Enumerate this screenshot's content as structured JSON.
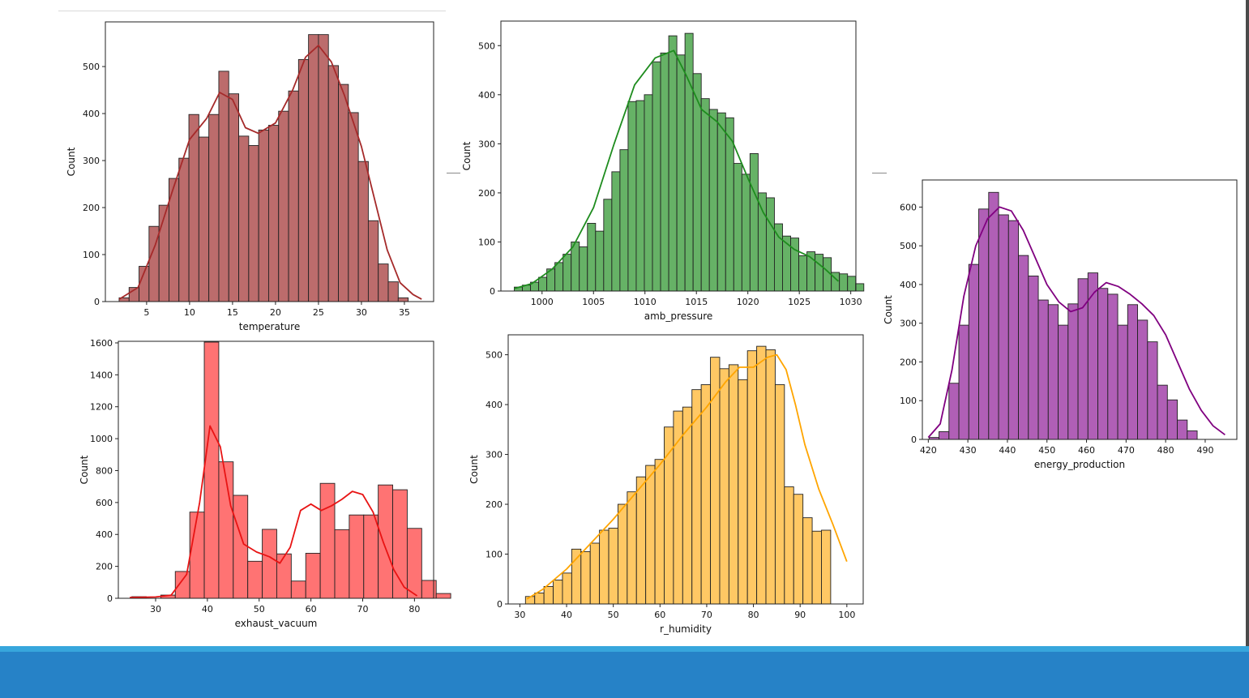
{
  "chart_data": [
    {
      "type": "bar",
      "xlabel": "temperature",
      "ylabel": "Count",
      "color": "#bc6c6c",
      "kde_color": "#a52a2a",
      "xlim": [
        0.2,
        38.4
      ],
      "ylim": [
        0,
        595
      ],
      "xticks": [
        5,
        10,
        15,
        20,
        25,
        30,
        35
      ],
      "yticks": [
        0,
        100,
        200,
        300,
        400,
        500
      ],
      "bin_start": 1.8,
      "bin_width": 1.16,
      "values": [
        8,
        30,
        75,
        160,
        205,
        262,
        305,
        398,
        350,
        398,
        490,
        442,
        352,
        332,
        365,
        375,
        405,
        448,
        515,
        568,
        568,
        502,
        462,
        402,
        298,
        172,
        80,
        42,
        8,
        0
      ],
      "kde": [
        [
          1.8,
          5
        ],
        [
          4,
          30
        ],
        [
          6,
          120
        ],
        [
          8,
          235
        ],
        [
          10,
          345
        ],
        [
          12,
          390
        ],
        [
          13.5,
          445
        ],
        [
          15,
          430
        ],
        [
          16.5,
          370
        ],
        [
          18,
          358
        ],
        [
          20,
          380
        ],
        [
          22,
          450
        ],
        [
          23.5,
          520
        ],
        [
          25,
          545
        ],
        [
          26.5,
          510
        ],
        [
          28,
          440
        ],
        [
          30,
          330
        ],
        [
          31.5,
          220
        ],
        [
          33,
          110
        ],
        [
          34.5,
          40
        ],
        [
          36,
          15
        ],
        [
          37,
          5
        ]
      ]
    },
    {
      "type": "bar",
      "xlabel": "amb_pressure",
      "ylabel": "Count",
      "color": "#66b266",
      "kde_color": "#1e8c1e",
      "xlim": [
        996,
        1030.5
      ],
      "ylim": [
        0,
        550
      ],
      "xticks": [
        1000,
        1005,
        1010,
        1015,
        1020,
        1025,
        1030
      ],
      "yticks": [
        0,
        100,
        200,
        300,
        400,
        500
      ],
      "bin_start": 997.3,
      "bin_width": 0.79,
      "values": [
        8,
        12,
        18,
        28,
        45,
        58,
        75,
        100,
        90,
        138,
        122,
        187,
        243,
        288,
        386,
        388,
        400,
        467,
        485,
        520,
        481,
        525,
        443,
        392,
        370,
        363,
        353,
        260,
        238,
        280,
        200,
        190,
        137,
        112,
        108,
        72,
        80,
        75,
        68,
        38,
        35,
        30,
        15
      ],
      "kde": [
        [
          997.3,
          5
        ],
        [
          999,
          15
        ],
        [
          1001,
          45
        ],
        [
          1003,
          90
        ],
        [
          1005,
          170
        ],
        [
          1007,
          300
        ],
        [
          1009,
          420
        ],
        [
          1011,
          475
        ],
        [
          1012.8,
          490
        ],
        [
          1014,
          440
        ],
        [
          1015.5,
          370
        ],
        [
          1017,
          345
        ],
        [
          1018.5,
          305
        ],
        [
          1020,
          230
        ],
        [
          1021.5,
          160
        ],
        [
          1023,
          110
        ],
        [
          1024.5,
          85
        ],
        [
          1026,
          70
        ],
        [
          1027.5,
          45
        ],
        [
          1028.8,
          20
        ]
      ]
    },
    {
      "type": "bar",
      "xlabel": "energy_production",
      "ylabel": "Count",
      "color": "#b05fb6",
      "kde_color": "#800080",
      "xlim": [
        418.5,
        498
      ],
      "ylim": [
        0,
        670
      ],
      "xticks": [
        420,
        430,
        440,
        450,
        460,
        470,
        480,
        490
      ],
      "yticks": [
        0,
        100,
        200,
        300,
        400,
        500,
        600
      ],
      "bin_start": 420.2,
      "bin_width": 2.51,
      "values": [
        5,
        20,
        145,
        295,
        452,
        595,
        638,
        580,
        565,
        475,
        422,
        360,
        348,
        295,
        350,
        415,
        430,
        390,
        375,
        295,
        348,
        308,
        252,
        140,
        102,
        50,
        22,
        0,
        0,
        0
      ],
      "kde": [
        [
          420,
          5
        ],
        [
          423,
          40
        ],
        [
          426,
          180
        ],
        [
          429,
          370
        ],
        [
          432,
          500
        ],
        [
          435,
          570
        ],
        [
          438,
          600
        ],
        [
          441,
          590
        ],
        [
          444,
          540
        ],
        [
          447,
          470
        ],
        [
          450,
          400
        ],
        [
          453,
          355
        ],
        [
          456,
          330
        ],
        [
          459,
          340
        ],
        [
          462,
          380
        ],
        [
          465,
          405
        ],
        [
          468,
          395
        ],
        [
          471,
          375
        ],
        [
          474,
          350
        ],
        [
          477,
          320
        ],
        [
          480,
          270
        ],
        [
          483,
          200
        ],
        [
          486,
          130
        ],
        [
          489,
          75
        ],
        [
          492,
          35
        ],
        [
          495,
          12
        ]
      ]
    },
    {
      "type": "bar",
      "xlabel": "exhaust_vacuum",
      "ylabel": "Count",
      "color": "#ff7373",
      "kde_color": "#e81414",
      "xlim": [
        22.8,
        83.7
      ],
      "ylim": [
        0,
        1610
      ],
      "xticks": [
        30,
        40,
        50,
        60,
        70,
        80
      ],
      "yticks": [
        0,
        200,
        400,
        600,
        800,
        1000,
        1200,
        1400,
        1600
      ],
      "bin_start": 25.4,
      "bin_width": 2.8,
      "values": [
        10,
        0,
        20,
        168,
        540,
        1605,
        855,
        645,
        232,
        432,
        278,
        108,
        282,
        720,
        430,
        522,
        522,
        710,
        680,
        438,
        112,
        30
      ],
      "kde": [
        [
          25,
          5
        ],
        [
          30,
          8
        ],
        [
          33,
          20
        ],
        [
          36,
          150
        ],
        [
          38.5,
          600
        ],
        [
          40.5,
          1080
        ],
        [
          42.5,
          950
        ],
        [
          44.5,
          580
        ],
        [
          47,
          340
        ],
        [
          49.5,
          290
        ],
        [
          52,
          260
        ],
        [
          54,
          220
        ],
        [
          56,
          320
        ],
        [
          58,
          550
        ],
        [
          60,
          590
        ],
        [
          62,
          550
        ],
        [
          64,
          580
        ],
        [
          66,
          620
        ],
        [
          68,
          670
        ],
        [
          70,
          650
        ],
        [
          72,
          540
        ],
        [
          74,
          350
        ],
        [
          76,
          180
        ],
        [
          78,
          70
        ],
        [
          80.5,
          15
        ]
      ]
    },
    {
      "type": "bar",
      "xlabel": "r_humidity",
      "ylabel": "Count",
      "color": "#ffc864",
      "kde_color": "#ffa500",
      "xlim": [
        27.5,
        103.5
      ],
      "ylim": [
        0,
        540
      ],
      "xticks": [
        30,
        40,
        50,
        60,
        70,
        80,
        90,
        100
      ],
      "yticks": [
        0,
        100,
        200,
        300,
        400,
        500
      ],
      "bin_start": 31.2,
      "bin_width": 1.98,
      "values": [
        15,
        22,
        35,
        48,
        62,
        110,
        105,
        122,
        148,
        152,
        200,
        225,
        255,
        278,
        290,
        355,
        387,
        395,
        430,
        440,
        495,
        472,
        480,
        450,
        508,
        517,
        510,
        440,
        235,
        220,
        173,
        146,
        148,
        0
      ],
      "kde": [
        [
          31.5,
          10
        ],
        [
          35,
          30
        ],
        [
          40,
          70
        ],
        [
          45,
          120
        ],
        [
          50,
          170
        ],
        [
          55,
          225
        ],
        [
          60,
          280
        ],
        [
          65,
          340
        ],
        [
          70,
          395
        ],
        [
          74,
          445
        ],
        [
          77,
          475
        ],
        [
          80,
          475
        ],
        [
          83,
          495
        ],
        [
          85,
          500
        ],
        [
          87,
          470
        ],
        [
          89,
          400
        ],
        [
          91,
          320
        ],
        [
          94,
          230
        ],
        [
          97,
          160
        ],
        [
          100,
          85
        ]
      ]
    }
  ]
}
